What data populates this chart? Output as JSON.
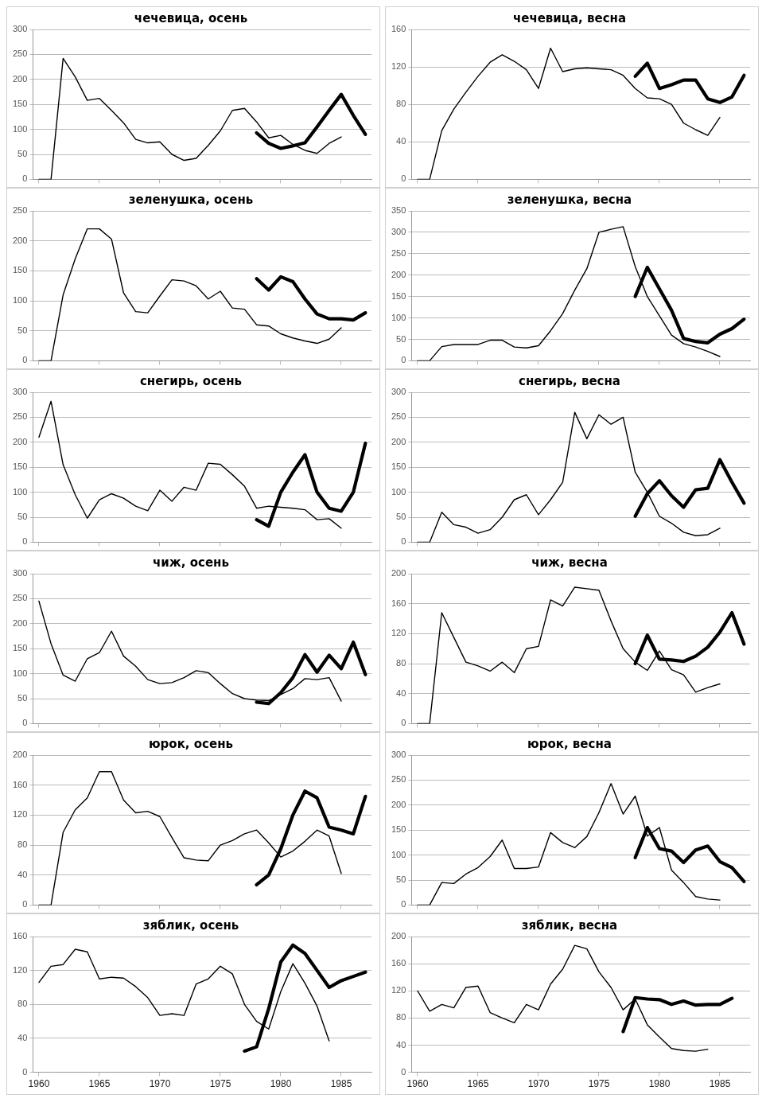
{
  "chart_data": [
    {
      "type": "line",
      "title": "чечевица, осень",
      "xlim": [
        1959.5,
        1987.5
      ],
      "xticks": [
        1960,
        1965,
        1970,
        1975,
        1980,
        1985
      ],
      "ylim": [
        0,
        300
      ],
      "yticks": [
        0,
        50,
        100,
        150,
        200,
        250,
        300
      ],
      "grid": "y",
      "tick_labels": "y",
      "series": [
        {
          "color": "#000000",
          "x": [
            1960,
            1961,
            1962,
            1963,
            1964,
            1965,
            1966,
            1967,
            1968,
            1969,
            1970,
            1971,
            1972,
            1973,
            1974,
            1975,
            1976,
            1977,
            1978,
            1979,
            1980,
            1981,
            1982,
            1983,
            1984,
            1985
          ],
          "values": [
            0,
            0,
            242,
            205,
            158,
            162,
            138,
            113,
            80,
            73,
            75,
            50,
            38,
            42,
            68,
            97,
            138,
            142,
            115,
            83,
            88,
            70,
            58,
            52,
            72,
            85
          ]
        },
        {
          "color": "#000000",
          "x": [
            1978,
            1979,
            1980,
            1981,
            1982,
            1983,
            1984,
            1985,
            1986,
            1987
          ],
          "values": [
            93,
            72,
            62,
            67,
            73,
            105,
            138,
            170,
            128,
            90
          ]
        }
      ]
    },
    {
      "type": "line",
      "title": "чечевица, весна",
      "xlim": [
        1959.5,
        1987.5
      ],
      "xticks": [
        1960,
        1965,
        1970,
        1975,
        1980,
        1985
      ],
      "ylim": [
        0,
        160
      ],
      "yticks": [
        0,
        40,
        80,
        120,
        160
      ],
      "grid": "y",
      "tick_labels": "y",
      "series": [
        {
          "color": "#000000",
          "x": [
            1960,
            1961,
            1962,
            1963,
            1964,
            1965,
            1966,
            1967,
            1968,
            1969,
            1970,
            1971,
            1972,
            1973,
            1974,
            1975,
            1976,
            1977,
            1978,
            1979,
            1980,
            1981,
            1982,
            1983,
            1984,
            1985
          ],
          "values": [
            0,
            0,
            52,
            75,
            93,
            110,
            125,
            133,
            126,
            117,
            97,
            140,
            115,
            118,
            119,
            118,
            117,
            111,
            97,
            87,
            86,
            80,
            60,
            53,
            47,
            66
          ]
        },
        {
          "color": "#000000",
          "x": [
            1978,
            1979,
            1980,
            1981,
            1982,
            1983,
            1984,
            1985,
            1986,
            1987
          ],
          "values": [
            110,
            124,
            97,
            101,
            106,
            106,
            86,
            82,
            88,
            111
          ]
        }
      ]
    },
    {
      "type": "line",
      "title": "зеленушка, осень",
      "xlim": [
        1959.5,
        1987.5
      ],
      "xticks": [
        1960,
        1965,
        1970,
        1975,
        1980,
        1985
      ],
      "ylim": [
        0,
        250
      ],
      "yticks": [
        0,
        50,
        100,
        150,
        200,
        250
      ],
      "grid": "y",
      "tick_labels": "y",
      "series": [
        {
          "color": "#000000",
          "x": [
            1960,
            1961,
            1962,
            1963,
            1964,
            1965,
            1966,
            1967,
            1968,
            1969,
            1970,
            1971,
            1972,
            1973,
            1974,
            1975,
            1976,
            1977,
            1978,
            1979,
            1980,
            1981,
            1982,
            1983,
            1984,
            1985
          ],
          "values": [
            0,
            0,
            110,
            170,
            220,
            220,
            203,
            113,
            82,
            80,
            108,
            135,
            133,
            125,
            103,
            116,
            88,
            86,
            60,
            58,
            45,
            38,
            33,
            29,
            36,
            55
          ]
        },
        {
          "color": "#000000",
          "x": [
            1978,
            1979,
            1980,
            1981,
            1982,
            1983,
            1984,
            1985,
            1986,
            1987
          ],
          "values": [
            137,
            118,
            140,
            132,
            103,
            78,
            70,
            70,
            68,
            80
          ]
        }
      ]
    },
    {
      "type": "line",
      "title": "зеленушка, весна",
      "xlim": [
        1959.5,
        1987.5
      ],
      "xticks": [
        1960,
        1965,
        1970,
        1975,
        1980,
        1985
      ],
      "ylim": [
        0,
        350
      ],
      "yticks": [
        0,
        50,
        100,
        150,
        200,
        250,
        300,
        350
      ],
      "grid": "y",
      "tick_labels": "y",
      "series": [
        {
          "color": "#000000",
          "x": [
            1960,
            1961,
            1962,
            1963,
            1964,
            1965,
            1966,
            1967,
            1968,
            1969,
            1970,
            1971,
            1972,
            1973,
            1974,
            1975,
            1976,
            1977,
            1978,
            1979,
            1980,
            1981,
            1982,
            1983,
            1984,
            1985
          ],
          "values": [
            0,
            0,
            33,
            38,
            38,
            38,
            48,
            48,
            32,
            30,
            35,
            70,
            110,
            165,
            215,
            300,
            307,
            313,
            220,
            150,
            105,
            60,
            40,
            32,
            22,
            10
          ]
        },
        {
          "color": "#000000",
          "x": [
            1978,
            1979,
            1980,
            1981,
            1982,
            1983,
            1984,
            1985,
            1986,
            1987
          ],
          "values": [
            150,
            218,
            168,
            118,
            52,
            45,
            42,
            62,
            75,
            97
          ]
        }
      ]
    },
    {
      "type": "line",
      "title": "снегирь, осень",
      "xlim": [
        1959.5,
        1987.5
      ],
      "xticks": [
        1960,
        1965,
        1970,
        1975,
        1980,
        1985
      ],
      "ylim": [
        0,
        300
      ],
      "yticks": [
        0,
        50,
        100,
        150,
        200,
        250,
        300
      ],
      "grid": "y",
      "tick_labels": "y",
      "series": [
        {
          "color": "#000000",
          "x": [
            1960,
            1961,
            1962,
            1963,
            1964,
            1965,
            1966,
            1967,
            1968,
            1969,
            1970,
            1971,
            1972,
            1973,
            1974,
            1975,
            1976,
            1977,
            1978,
            1979,
            1980,
            1981,
            1982,
            1983,
            1984,
            1985
          ],
          "values": [
            210,
            282,
            155,
            95,
            48,
            85,
            97,
            88,
            72,
            63,
            104,
            82,
            110,
            104,
            158,
            156,
            135,
            112,
            68,
            72,
            70,
            68,
            65,
            45,
            47,
            28
          ]
        },
        {
          "color": "#000000",
          "x": [
            1978,
            1979,
            1980,
            1981,
            1982,
            1983,
            1984,
            1985,
            1986,
            1987
          ],
          "values": [
            45,
            32,
            100,
            140,
            175,
            100,
            68,
            62,
            100,
            198
          ]
        }
      ]
    },
    {
      "type": "line",
      "title": "снегирь, весна",
      "xlim": [
        1959.5,
        1987.5
      ],
      "xticks": [
        1960,
        1965,
        1970,
        1975,
        1980,
        1985
      ],
      "ylim": [
        0,
        300
      ],
      "yticks": [
        0,
        50,
        100,
        150,
        200,
        250,
        300
      ],
      "grid": "y",
      "tick_labels": "y",
      "series": [
        {
          "color": "#000000",
          "x": [
            1960,
            1961,
            1962,
            1963,
            1964,
            1965,
            1966,
            1967,
            1968,
            1969,
            1970,
            1971,
            1972,
            1973,
            1974,
            1975,
            1976,
            1977,
            1978,
            1979,
            1980,
            1981,
            1982,
            1983,
            1984,
            1985
          ],
          "values": [
            0,
            0,
            60,
            35,
            30,
            18,
            25,
            50,
            85,
            95,
            55,
            85,
            120,
            260,
            207,
            255,
            236,
            250,
            140,
            100,
            52,
            38,
            20,
            13,
            15,
            28
          ]
        },
        {
          "color": "#000000",
          "x": [
            1978,
            1979,
            1980,
            1981,
            1982,
            1983,
            1984,
            1985,
            1986,
            1987
          ],
          "values": [
            52,
            97,
            123,
            93,
            70,
            105,
            108,
            165,
            120,
            78
          ]
        }
      ]
    },
    {
      "type": "line",
      "title": "чиж, осень",
      "xlim": [
        1959.5,
        1987.5
      ],
      "xticks": [
        1960,
        1965,
        1970,
        1975,
        1980,
        1985
      ],
      "ylim": [
        0,
        300
      ],
      "yticks": [
        0,
        50,
        100,
        150,
        200,
        250,
        300
      ],
      "grid": "y",
      "tick_labels": "y",
      "series": [
        {
          "color": "#000000",
          "x": [
            1960,
            1961,
            1962,
            1963,
            1964,
            1965,
            1966,
            1967,
            1968,
            1969,
            1970,
            1971,
            1972,
            1973,
            1974,
            1975,
            1976,
            1977,
            1978,
            1979,
            1980,
            1981,
            1982,
            1983,
            1984,
            1985
          ],
          "values": [
            245,
            160,
            97,
            85,
            130,
            142,
            185,
            135,
            115,
            88,
            80,
            82,
            92,
            106,
            102,
            80,
            60,
            50,
            47,
            46,
            58,
            70,
            90,
            88,
            92,
            45
          ]
        },
        {
          "color": "#000000",
          "x": [
            1978,
            1979,
            1980,
            1981,
            1982,
            1983,
            1984,
            1985,
            1986,
            1987
          ],
          "values": [
            43,
            40,
            62,
            92,
            138,
            103,
            137,
            110,
            163,
            98
          ]
        }
      ]
    },
    {
      "type": "line",
      "title": "чиж, весна",
      "xlim": [
        1959.5,
        1987.5
      ],
      "xticks": [
        1960,
        1965,
        1970,
        1975,
        1980,
        1985
      ],
      "ylim": [
        0,
        200
      ],
      "yticks": [
        0,
        40,
        80,
        120,
        160,
        200
      ],
      "grid": "y",
      "tick_labels": "y",
      "series": [
        {
          "color": "#000000",
          "x": [
            1960,
            1961,
            1962,
            1963,
            1964,
            1965,
            1966,
            1967,
            1968,
            1969,
            1970,
            1971,
            1972,
            1973,
            1974,
            1975,
            1976,
            1977,
            1978,
            1979,
            1980,
            1981,
            1982,
            1983,
            1984,
            1985
          ],
          "values": [
            0,
            0,
            148,
            115,
            82,
            77,
            70,
            82,
            68,
            100,
            103,
            165,
            157,
            182,
            180,
            178,
            137,
            100,
            82,
            71,
            97,
            72,
            65,
            42,
            48,
            53
          ]
        },
        {
          "color": "#000000",
          "x": [
            1978,
            1979,
            1980,
            1981,
            1982,
            1983,
            1984,
            1985,
            1986,
            1987
          ],
          "values": [
            80,
            118,
            86,
            85,
            83,
            90,
            102,
            122,
            148,
            106
          ]
        }
      ]
    },
    {
      "type": "line",
      "title": "юрок, осень",
      "xlim": [
        1959.5,
        1987.5
      ],
      "xticks": [
        1960,
        1965,
        1970,
        1975,
        1980,
        1985
      ],
      "ylim": [
        0,
        200
      ],
      "yticks": [
        0,
        40,
        80,
        120,
        160,
        200
      ],
      "grid": "y",
      "tick_labels": "y",
      "series": [
        {
          "color": "#000000",
          "x": [
            1960,
            1961,
            1962,
            1963,
            1964,
            1965,
            1966,
            1967,
            1968,
            1969,
            1970,
            1971,
            1972,
            1973,
            1974,
            1975,
            1976,
            1977,
            1978,
            1979,
            1980,
            1981,
            1982,
            1983,
            1984,
            1985
          ],
          "values": [
            0,
            0,
            97,
            127,
            143,
            178,
            178,
            140,
            123,
            125,
            118,
            90,
            63,
            60,
            59,
            80,
            86,
            95,
            100,
            83,
            64,
            72,
            85,
            100,
            92,
            42
          ]
        },
        {
          "color": "#000000",
          "x": [
            1978,
            1979,
            1980,
            1981,
            1982,
            1983,
            1984,
            1985,
            1986,
            1987
          ],
          "values": [
            27,
            40,
            75,
            120,
            152,
            143,
            104,
            100,
            95,
            145
          ]
        }
      ]
    },
    {
      "type": "line",
      "title": "юрок, весна",
      "xlim": [
        1959.5,
        1987.5
      ],
      "xticks": [
        1960,
        1965,
        1970,
        1975,
        1980,
        1985
      ],
      "ylim": [
        0,
        300
      ],
      "yticks": [
        0,
        50,
        100,
        150,
        200,
        250,
        300
      ],
      "grid": "y",
      "tick_labels": "y",
      "series": [
        {
          "color": "#000000",
          "x": [
            1960,
            1961,
            1962,
            1963,
            1964,
            1965,
            1966,
            1967,
            1968,
            1969,
            1970,
            1971,
            1972,
            1973,
            1974,
            1975,
            1976,
            1977,
            1978,
            1979,
            1980,
            1981,
            1982,
            1983,
            1984,
            1985
          ],
          "values": [
            0,
            0,
            45,
            43,
            62,
            75,
            97,
            130,
            73,
            73,
            76,
            145,
            125,
            115,
            137,
            185,
            243,
            182,
            218,
            138,
            155,
            70,
            45,
            17,
            12,
            10
          ]
        },
        {
          "color": "#000000",
          "x": [
            1978,
            1979,
            1980,
            1981,
            1982,
            1983,
            1984,
            1985,
            1986,
            1987
          ],
          "values": [
            95,
            155,
            113,
            108,
            85,
            110,
            118,
            87,
            75,
            47
          ]
        }
      ]
    },
    {
      "type": "line",
      "title": "зяблик, осень",
      "xlim": [
        1959.5,
        1987.5
      ],
      "xticks": [
        1960,
        1965,
        1970,
        1975,
        1980,
        1985
      ],
      "ylim": [
        0,
        160
      ],
      "yticks": [
        0,
        40,
        80,
        120,
        160
      ],
      "grid": "y",
      "series": [
        {
          "color": "#000000",
          "x": [
            1960,
            1961,
            1962,
            1963,
            1964,
            1965,
            1966,
            1967,
            1968,
            1969,
            1970,
            1971,
            1972,
            1973,
            1974,
            1975,
            1976,
            1977,
            1978,
            1979,
            1980,
            1981,
            1982,
            1983,
            1984
          ],
          "values": [
            106,
            125,
            127,
            145,
            142,
            110,
            112,
            111,
            101,
            88,
            67,
            69,
            67,
            104,
            110,
            125,
            116,
            80,
            60,
            51,
            95,
            128,
            105,
            78,
            37
          ]
        },
        {
          "color": "#000000",
          "x": [
            1977,
            1978,
            1979,
            1980,
            1981,
            1982,
            1983,
            1984,
            1985,
            1986,
            1987
          ],
          "values": [
            25,
            30,
            75,
            130,
            150,
            140,
            120,
            100,
            108,
            113,
            118
          ]
        }
      ]
    },
    {
      "type": "line",
      "title": "зяблик, весна",
      "xlim": [
        1959.5,
        1987.5
      ],
      "xticks": [
        1960,
        1965,
        1970,
        1975,
        1980,
        1985
      ],
      "ylim": [
        0,
        200
      ],
      "yticks": [
        0,
        40,
        80,
        120,
        160,
        200
      ],
      "grid": "y",
      "series": [
        {
          "color": "#000000",
          "x": [
            1960,
            1961,
            1962,
            1963,
            1964,
            1965,
            1966,
            1967,
            1968,
            1969,
            1970,
            1971,
            1972,
            1973,
            1974,
            1975,
            1976,
            1977,
            1978,
            1979,
            1980,
            1981,
            1982,
            1983,
            1984
          ],
          "values": [
            120,
            90,
            100,
            95,
            125,
            127,
            88,
            80,
            73,
            100,
            92,
            130,
            152,
            187,
            182,
            148,
            125,
            92,
            108,
            70,
            52,
            35,
            32,
            31,
            34
          ]
        },
        {
          "color": "#000000",
          "x": [
            1977,
            1978,
            1979,
            1980,
            1981,
            1982,
            1983,
            1984,
            1985,
            1986
          ],
          "values": [
            60,
            110,
            108,
            107,
            100,
            105,
            99,
            100,
            100,
            109
          ]
        }
      ]
    }
  ]
}
